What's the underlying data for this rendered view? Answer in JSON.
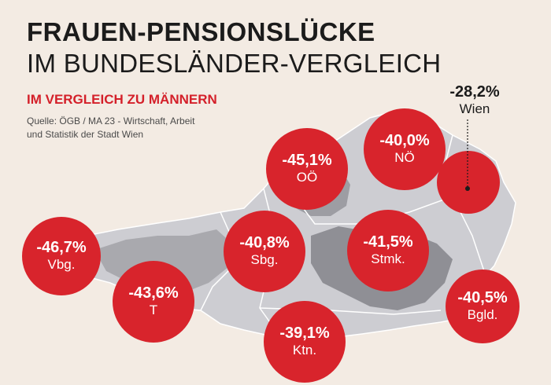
{
  "header": {
    "title_line1": "FRAUEN-PENSIONSLÜCKE",
    "title_line2": "IM BUNDESLÄNDER-VERGLEICH",
    "subtitle": "IM VERGLEICH ZU MÄNNERN",
    "source": "Quelle: ÖGB / MA 23 - Wirtschaft, Arbeit und Statistik der Stadt Wien"
  },
  "colors": {
    "background": "#f3ebe3",
    "bubble_red": "#d8242c",
    "bubble_dark": "#8e1418",
    "map_light": "#c9c9ce",
    "map_dark": "#8d8d93"
  },
  "regions": [
    {
      "id": "ooe",
      "label": "OÖ",
      "value": "-45,1%"
    },
    {
      "id": "noe",
      "label": "NÖ",
      "value": "-40,0%"
    },
    {
      "id": "wien",
      "label": "Wien",
      "value": "-28,2%"
    },
    {
      "id": "vbg",
      "label": "Vbg.",
      "value": "-46,7%"
    },
    {
      "id": "sbg",
      "label": "Sbg.",
      "value": "-40,8%"
    },
    {
      "id": "stmk",
      "label": "Stmk.",
      "value": "-41,5%"
    },
    {
      "id": "t",
      "label": "T",
      "value": "-43,6%"
    },
    {
      "id": "bgld",
      "label": "Bgld.",
      "value": "-40,5%"
    },
    {
      "id": "ktn",
      "label": "Ktn.",
      "value": "-39,1%"
    }
  ]
}
